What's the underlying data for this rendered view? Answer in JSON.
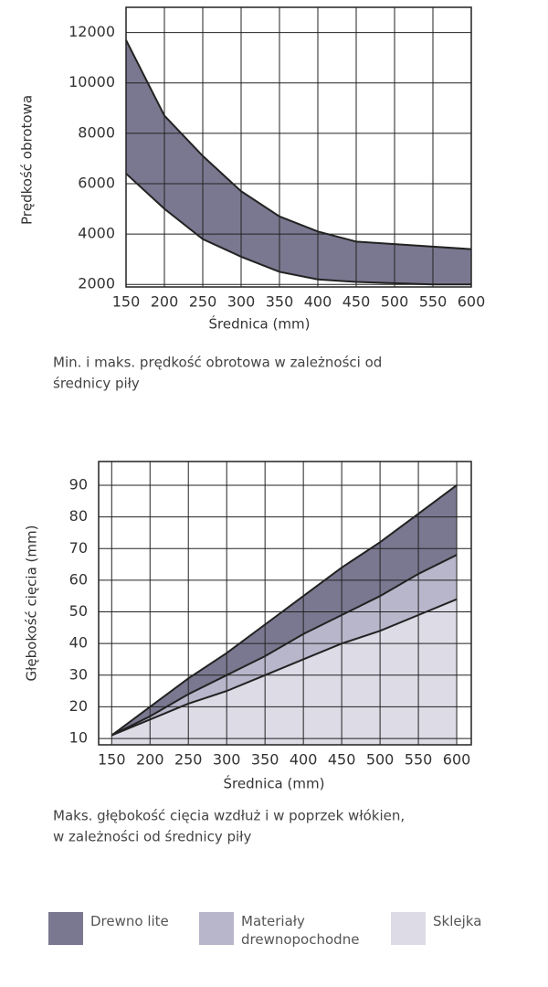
{
  "chart_data": [
    {
      "type": "range-area",
      "y_label": "Prędkość obrotowa",
      "x_label": "Średnica (mm)",
      "caption": [
        "Min. i maks. prędkość obrotowa w zależności od",
        "średnicy piły"
      ],
      "x": [
        150,
        200,
        250,
        300,
        350,
        400,
        450,
        500,
        550,
        600
      ],
      "high": [
        11700,
        8700,
        7100,
        5700,
        4700,
        4100,
        3700,
        3600,
        3500,
        3400
      ],
      "low": [
        6400,
        5000,
        3800,
        3100,
        2500,
        2200,
        2100,
        2050,
        2000,
        2000
      ],
      "color": "#7a7890",
      "xlim": [
        150,
        600
      ],
      "xticks": [
        150,
        200,
        250,
        300,
        350,
        400,
        450,
        500,
        550,
        600
      ],
      "ylim": [
        1900,
        13000
      ],
      "yticks": [
        2000,
        4000,
        6000,
        8000,
        10000,
        12000
      ],
      "grid": true
    },
    {
      "type": "area",
      "y_label": "Głębokość cięcia (mm)",
      "x_label": "Średnica (mm)",
      "caption": [
        "Maks. głębokość cięcia wzdłuż i w poprzek włókien,",
        "w zależności od średnicy piły"
      ],
      "x": [
        150,
        200,
        250,
        300,
        350,
        400,
        450,
        500,
        550,
        600
      ],
      "series": [
        {
          "name": "Drewno lite",
          "color": "#7a7890",
          "values": [
            11,
            20,
            29,
            37,
            46,
            55,
            64,
            72,
            81,
            90
          ]
        },
        {
          "name": "Materiały drewnopochodne",
          "color": "#b8b6cb",
          "values": [
            11,
            17,
            24,
            30,
            36,
            43,
            49,
            55,
            62,
            68
          ]
        },
        {
          "name": "Sklejka",
          "color": "#dcdbe6",
          "values": [
            11,
            16,
            21,
            25,
            30,
            35,
            40,
            44,
            49,
            54
          ]
        }
      ],
      "xlim": [
        133,
        619
      ],
      "xticks": [
        150,
        200,
        250,
        300,
        350,
        400,
        450,
        500,
        550,
        600
      ],
      "ylim": [
        8,
        97.5
      ],
      "yticks": [
        10,
        20,
        30,
        40,
        50,
        60,
        70,
        80,
        90
      ],
      "grid": true
    }
  ]
}
